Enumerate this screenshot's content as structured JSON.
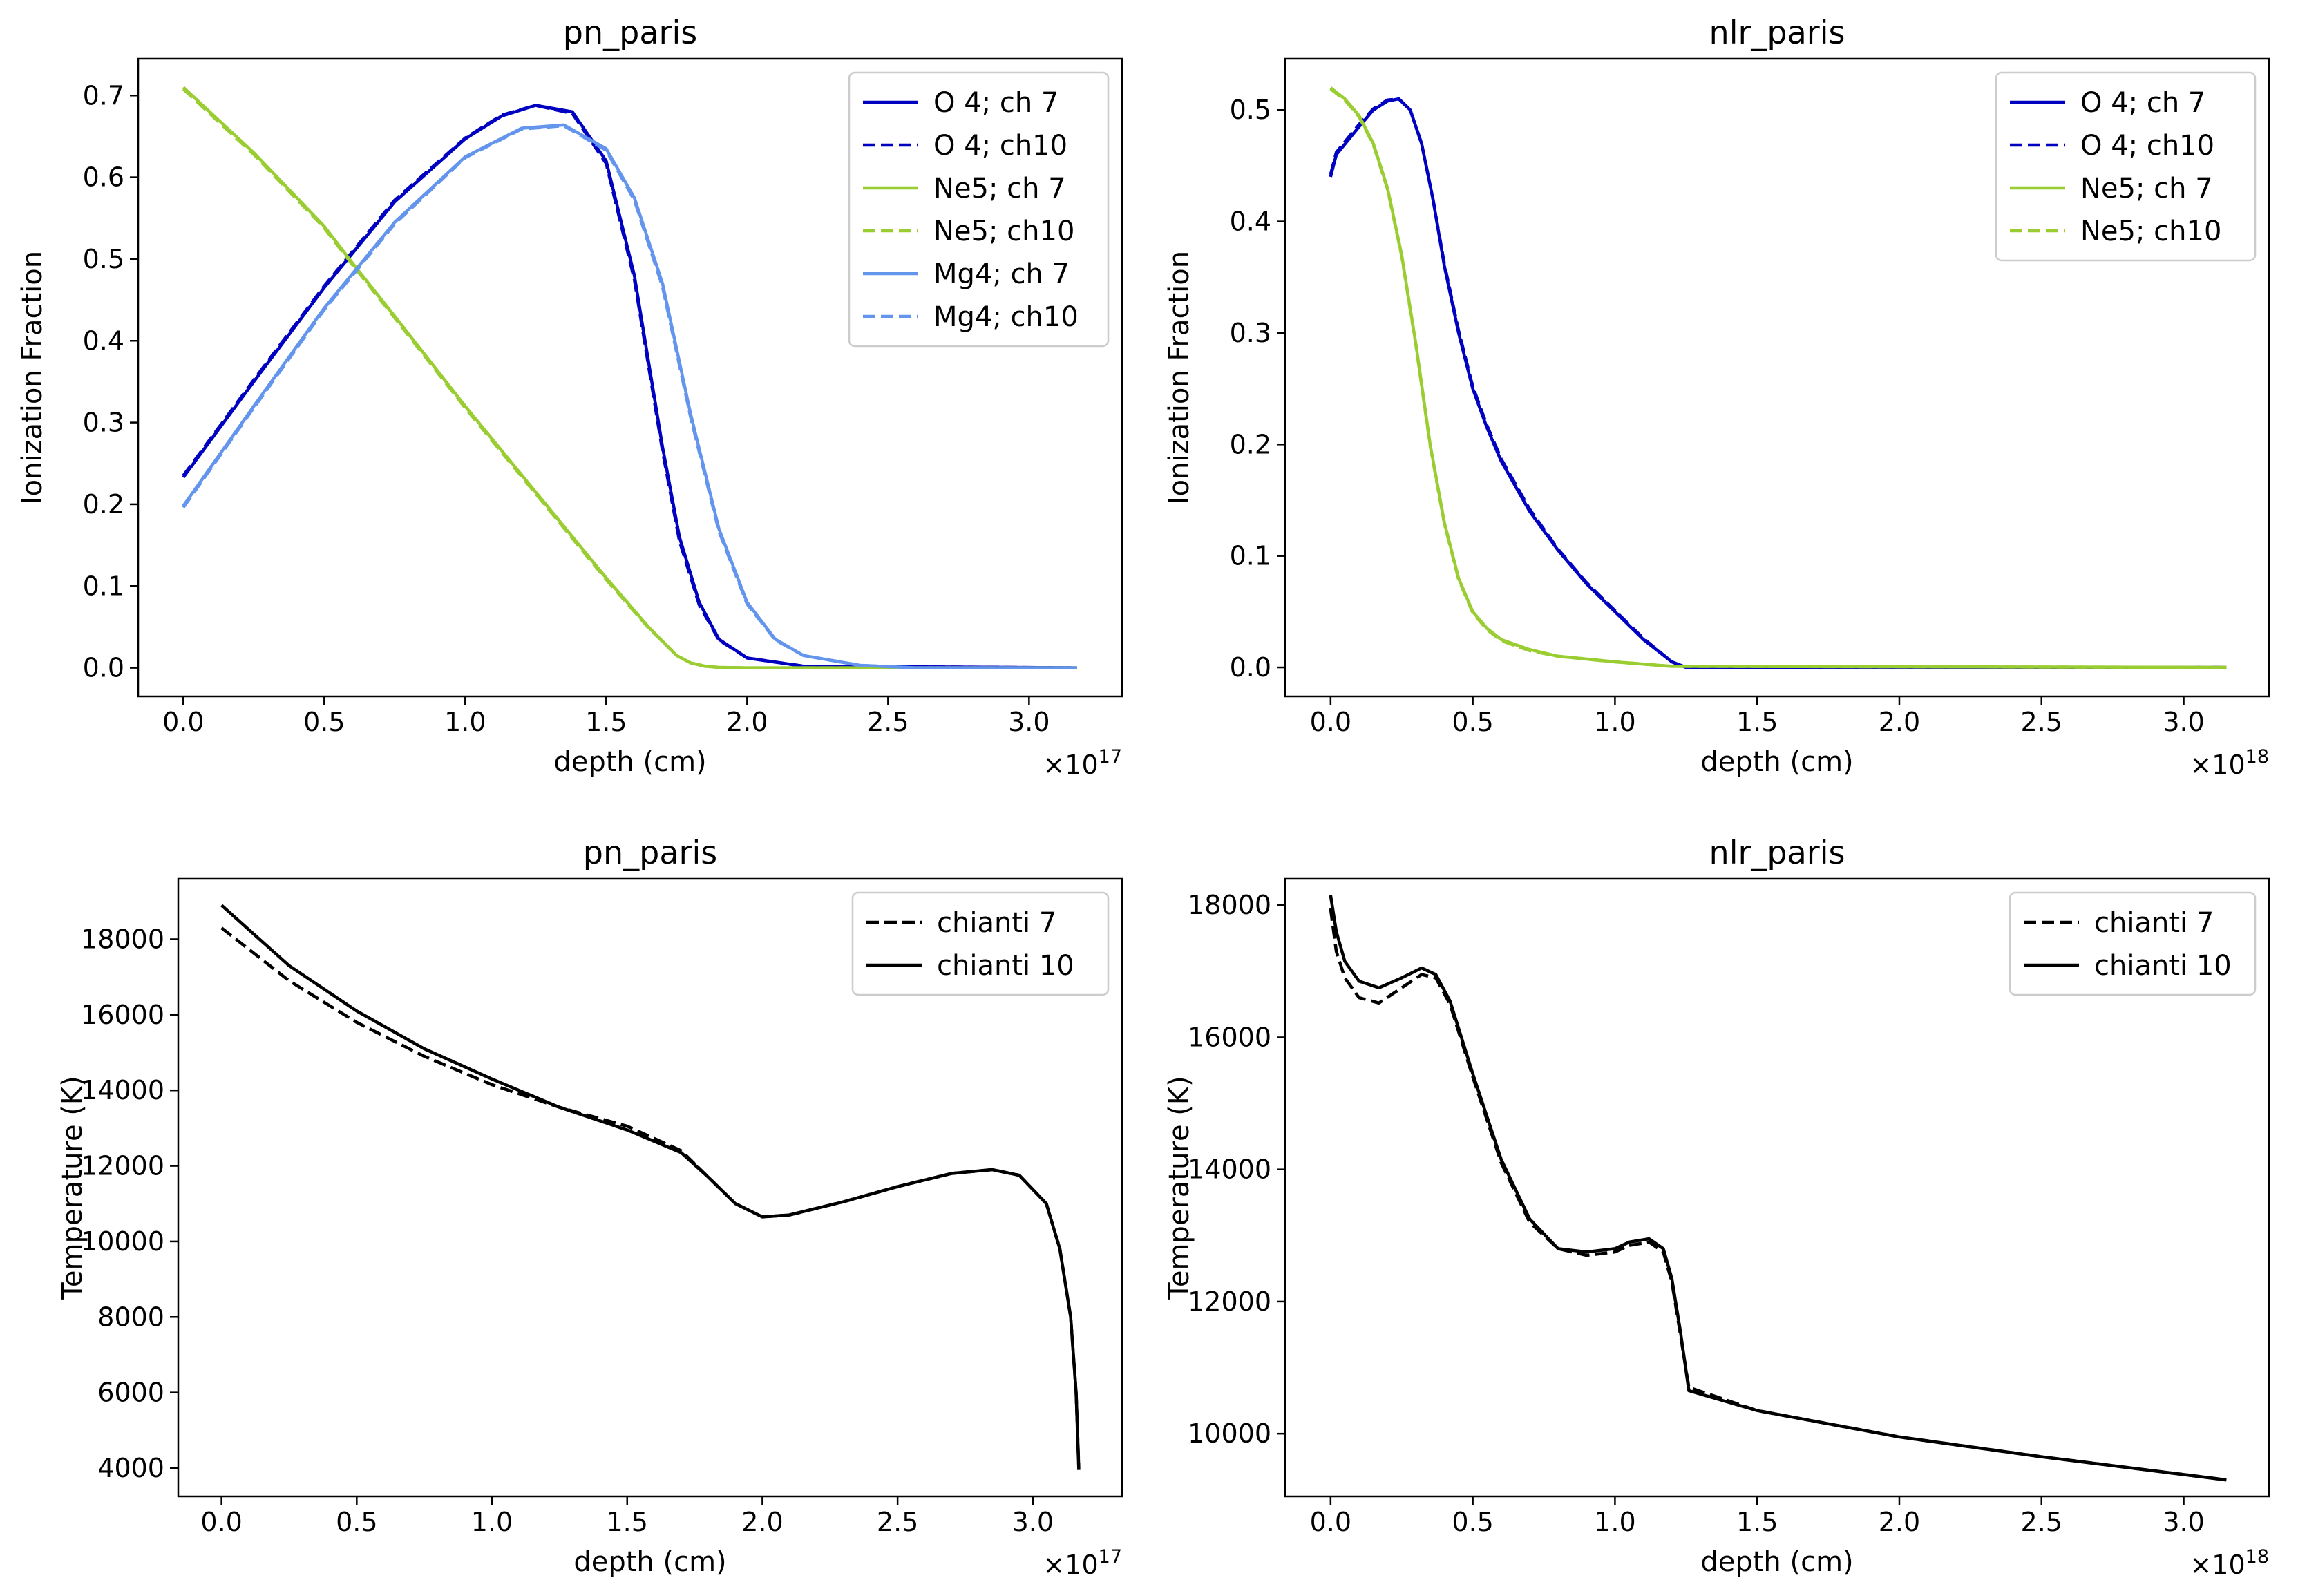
{
  "figure": {
    "background": "#ffffff"
  },
  "chart_data": [
    {
      "type": "line",
      "title": "pn_paris",
      "xlabel": "depth (cm)",
      "ylabel": "Ionization Fraction",
      "x_scale_label": "×10^17",
      "x_multiplier": "×10",
      "x_exponent": "17",
      "xlim": [
        -0.16,
        3.33
      ],
      "ylim": [
        -0.035,
        0.745
      ],
      "xticks": [
        0.0,
        0.5,
        1.0,
        1.5,
        2.0,
        2.5,
        3.0
      ],
      "xtick_labels": [
        "0.0",
        "0.5",
        "1.0",
        "1.5",
        "2.0",
        "2.5",
        "3.0"
      ],
      "yticks": [
        0.0,
        0.1,
        0.2,
        0.3,
        0.4,
        0.5,
        0.6,
        0.7
      ],
      "ytick_labels": [
        "0.0",
        "0.1",
        "0.2",
        "0.3",
        "0.4",
        "0.5",
        "0.6",
        "0.7"
      ],
      "legend_position": "upper right",
      "series": [
        {
          "name": "O 4; ch 7",
          "color": "#0000c0",
          "style": "solid",
          "x": [
            0,
            0.25,
            0.5,
            0.75,
            1.0,
            1.13,
            1.25,
            1.38,
            1.5,
            1.6,
            1.7,
            1.76,
            1.83,
            1.9,
            2.0,
            2.2,
            3.17
          ],
          "y": [
            0.233,
            0.35,
            0.465,
            0.57,
            0.647,
            0.675,
            0.688,
            0.68,
            0.62,
            0.48,
            0.27,
            0.16,
            0.08,
            0.035,
            0.012,
            0.002,
            0.0
          ]
        },
        {
          "name": "O 4; ch10",
          "color": "#0000c0",
          "style": "dashed",
          "x": [
            0,
            0.25,
            0.5,
            0.75,
            1.0,
            1.13,
            1.25,
            1.38,
            1.5,
            1.6,
            1.7,
            1.76,
            1.83,
            1.9,
            2.0,
            2.2,
            3.17
          ],
          "y": [
            0.235,
            0.352,
            0.467,
            0.572,
            0.648,
            0.676,
            0.688,
            0.678,
            0.617,
            0.475,
            0.265,
            0.155,
            0.077,
            0.034,
            0.012,
            0.002,
            0.0
          ]
        },
        {
          "name": "Ne5; ch 7",
          "color": "#9acd32",
          "style": "solid",
          "x": [
            0,
            0.25,
            0.5,
            0.6,
            0.75,
            1.0,
            1.25,
            1.5,
            1.65,
            1.75,
            1.8,
            1.85,
            1.9,
            2.0,
            3.17
          ],
          "y": [
            0.71,
            0.63,
            0.54,
            0.495,
            0.43,
            0.32,
            0.215,
            0.11,
            0.05,
            0.015,
            0.006,
            0.002,
            0.0005,
            0.0,
            0.0
          ]
        },
        {
          "name": "Ne5; ch10",
          "color": "#9acd32",
          "style": "dashed",
          "x": [
            0,
            0.25,
            0.5,
            0.6,
            0.75,
            1.0,
            1.25,
            1.5,
            1.65,
            1.75,
            1.8,
            1.85,
            1.9,
            2.0,
            3.17
          ],
          "y": [
            0.708,
            0.628,
            0.538,
            0.493,
            0.428,
            0.318,
            0.213,
            0.108,
            0.049,
            0.015,
            0.006,
            0.002,
            0.0005,
            0.0,
            0.0
          ]
        },
        {
          "name": "Mg4; ch 7",
          "color": "#6495ed",
          "style": "solid",
          "x": [
            0,
            0.25,
            0.5,
            0.75,
            1.0,
            1.2,
            1.35,
            1.5,
            1.6,
            1.7,
            1.8,
            1.9,
            2.0,
            2.1,
            2.2,
            2.4,
            2.6,
            3.17
          ],
          "y": [
            0.198,
            0.32,
            0.44,
            0.545,
            0.625,
            0.66,
            0.664,
            0.635,
            0.575,
            0.47,
            0.31,
            0.17,
            0.08,
            0.035,
            0.015,
            0.003,
            0.0,
            0.0
          ]
        },
        {
          "name": "Mg4; ch10",
          "color": "#6495ed",
          "style": "dashed",
          "x": [
            0,
            0.25,
            0.5,
            0.75,
            1.0,
            1.2,
            1.35,
            1.5,
            1.6,
            1.7,
            1.8,
            1.9,
            2.0,
            2.1,
            2.2,
            2.4,
            2.6,
            3.17
          ],
          "y": [
            0.196,
            0.318,
            0.438,
            0.543,
            0.624,
            0.659,
            0.663,
            0.633,
            0.572,
            0.466,
            0.306,
            0.167,
            0.078,
            0.034,
            0.015,
            0.003,
            0.0,
            0.0
          ]
        }
      ]
    },
    {
      "type": "line",
      "title": "nlr_paris",
      "xlabel": "depth (cm)",
      "ylabel": "Ionization Fraction",
      "x_scale_label": "×10^18",
      "x_multiplier": "×10",
      "x_exponent": "18",
      "xlim": [
        -0.16,
        3.3
      ],
      "ylim": [
        -0.026,
        0.546
      ],
      "xticks": [
        0.0,
        0.5,
        1.0,
        1.5,
        2.0,
        2.5,
        3.0
      ],
      "xtick_labels": [
        "0.0",
        "0.5",
        "1.0",
        "1.5",
        "2.0",
        "2.5",
        "3.0"
      ],
      "yticks": [
        0.0,
        0.1,
        0.2,
        0.3,
        0.4,
        0.5
      ],
      "ytick_labels": [
        "0.0",
        "0.1",
        "0.2",
        "0.3",
        "0.4",
        "0.5"
      ],
      "legend_position": "upper right",
      "series": [
        {
          "name": "O 4; ch 7",
          "color": "#0000c0",
          "style": "solid",
          "x": [
            0,
            0.02,
            0.1,
            0.15,
            0.2,
            0.24,
            0.28,
            0.32,
            0.36,
            0.4,
            0.45,
            0.5,
            0.55,
            0.6,
            0.7,
            0.8,
            0.9,
            1.0,
            1.1,
            1.2,
            1.25,
            3.15
          ],
          "y": [
            0.44,
            0.46,
            0.485,
            0.5,
            0.508,
            0.51,
            0.5,
            0.47,
            0.42,
            0.36,
            0.3,
            0.25,
            0.215,
            0.185,
            0.14,
            0.105,
            0.075,
            0.05,
            0.025,
            0.005,
            0.0,
            0.0
          ]
        },
        {
          "name": "O 4; ch10",
          "color": "#0000c0",
          "style": "dashed",
          "x": [
            0,
            0.02,
            0.1,
            0.15,
            0.2,
            0.24,
            0.28,
            0.32,
            0.36,
            0.4,
            0.45,
            0.5,
            0.55,
            0.6,
            0.7,
            0.8,
            0.9,
            1.0,
            1.1,
            1.2,
            1.25,
            3.15
          ],
          "y": [
            0.442,
            0.462,
            0.487,
            0.501,
            0.509,
            0.51,
            0.5,
            0.47,
            0.42,
            0.362,
            0.302,
            0.252,
            0.217,
            0.187,
            0.142,
            0.106,
            0.076,
            0.051,
            0.026,
            0.005,
            0.0,
            0.0
          ]
        },
        {
          "name": "Ne5; ch 7",
          "color": "#9acd32",
          "style": "solid",
          "x": [
            0,
            0.05,
            0.1,
            0.15,
            0.2,
            0.25,
            0.3,
            0.35,
            0.4,
            0.45,
            0.5,
            0.55,
            0.6,
            0.7,
            0.8,
            1.0,
            1.2,
            3.15
          ],
          "y": [
            0.52,
            0.51,
            0.495,
            0.47,
            0.43,
            0.37,
            0.29,
            0.2,
            0.13,
            0.08,
            0.05,
            0.035,
            0.025,
            0.016,
            0.01,
            0.005,
            0.001,
            0.0
          ]
        },
        {
          "name": "Ne5; ch10",
          "color": "#9acd32",
          "style": "dashed",
          "x": [
            0,
            0.05,
            0.1,
            0.15,
            0.2,
            0.25,
            0.3,
            0.35,
            0.4,
            0.45,
            0.5,
            0.55,
            0.6,
            0.7,
            0.8,
            1.0,
            1.2,
            3.15
          ],
          "y": [
            0.519,
            0.509,
            0.494,
            0.469,
            0.429,
            0.369,
            0.289,
            0.199,
            0.129,
            0.079,
            0.049,
            0.034,
            0.024,
            0.015,
            0.01,
            0.005,
            0.001,
            0.0
          ]
        }
      ]
    },
    {
      "type": "line",
      "title": "pn_paris",
      "xlabel": "depth (cm)",
      "ylabel": "Temperature (K)",
      "x_scale_label": "×10^17",
      "x_multiplier": "×10",
      "x_exponent": "17",
      "xlim": [
        -0.16,
        3.33
      ],
      "ylim": [
        3250,
        19600
      ],
      "xticks": [
        0.0,
        0.5,
        1.0,
        1.5,
        2.0,
        2.5,
        3.0
      ],
      "xtick_labels": [
        "0.0",
        "0.5",
        "1.0",
        "1.5",
        "2.0",
        "2.5",
        "3.0"
      ],
      "yticks": [
        4000,
        6000,
        8000,
        10000,
        12000,
        14000,
        16000,
        18000
      ],
      "ytick_labels": [
        "4000",
        "6000",
        "8000",
        "10000",
        "12000",
        "14000",
        "16000",
        "18000"
      ],
      "legend_position": "upper right",
      "series": [
        {
          "name": "chianti 7",
          "color": "#000000",
          "style": "dashed",
          "x": [
            0,
            0.25,
            0.5,
            0.75,
            1.0,
            1.25,
            1.5,
            1.7,
            1.8,
            1.9,
            2.0,
            2.1,
            2.3,
            2.5,
            2.7,
            2.85,
            2.95,
            3.05,
            3.1,
            3.14,
            3.16,
            3.17
          ],
          "y": [
            18300,
            16900,
            15800,
            14900,
            14150,
            13550,
            13050,
            12400,
            11700,
            11000,
            10650,
            10700,
            11050,
            11450,
            11800,
            11900,
            11750,
            11000,
            9800,
            8000,
            6000,
            4000
          ]
        },
        {
          "name": "chianti 10",
          "color": "#000000",
          "style": "solid",
          "x": [
            0,
            0.25,
            0.5,
            0.75,
            1.0,
            1.25,
            1.5,
            1.7,
            1.8,
            1.9,
            2.0,
            2.1,
            2.3,
            2.5,
            2.7,
            2.85,
            2.95,
            3.05,
            3.1,
            3.14,
            3.16,
            3.17
          ],
          "y": [
            18900,
            17300,
            16100,
            15100,
            14300,
            13550,
            12950,
            12350,
            11700,
            11000,
            10650,
            10700,
            11050,
            11450,
            11800,
            11900,
            11750,
            11000,
            9800,
            8000,
            6000,
            3950
          ]
        }
      ]
    },
    {
      "type": "line",
      "title": "nlr_paris",
      "xlabel": "depth (cm)",
      "ylabel": "Temperature (K)",
      "x_scale_label": "×10^18",
      "x_multiplier": "×10",
      "x_exponent": "18",
      "xlim": [
        -0.16,
        3.3
      ],
      "ylim": [
        9050,
        18400
      ],
      "xticks": [
        0.0,
        0.5,
        1.0,
        1.5,
        2.0,
        2.5,
        3.0
      ],
      "xtick_labels": [
        "0.0",
        "0.5",
        "1.0",
        "1.5",
        "2.0",
        "2.5",
        "3.0"
      ],
      "yticks": [
        10000,
        12000,
        14000,
        16000,
        18000
      ],
      "ytick_labels": [
        "10000",
        "12000",
        "14000",
        "16000",
        "18000"
      ],
      "legend_position": "upper right",
      "series": [
        {
          "name": "chianti 7",
          "color": "#000000",
          "style": "dashed",
          "x": [
            0,
            0.02,
            0.05,
            0.1,
            0.17,
            0.25,
            0.32,
            0.37,
            0.42,
            0.5,
            0.6,
            0.7,
            0.8,
            0.9,
            1.0,
            1.05,
            1.12,
            1.17,
            1.2,
            1.23,
            1.26,
            1.5,
            2.0,
            2.5,
            3.15
          ],
          "y": [
            17950,
            17300,
            16900,
            16600,
            16520,
            16750,
            16950,
            16900,
            16500,
            15400,
            14100,
            13200,
            12800,
            12700,
            12750,
            12850,
            12900,
            12750,
            12300,
            11500,
            10700,
            10350,
            9950,
            9650,
            9300
          ]
        },
        {
          "name": "chianti 10",
          "color": "#000000",
          "style": "solid",
          "x": [
            0,
            0.02,
            0.05,
            0.1,
            0.17,
            0.25,
            0.32,
            0.37,
            0.42,
            0.5,
            0.6,
            0.7,
            0.8,
            0.9,
            1.0,
            1.05,
            1.12,
            1.17,
            1.2,
            1.23,
            1.26,
            1.5,
            2.0,
            2.5,
            3.15
          ],
          "y": [
            18150,
            17600,
            17150,
            16850,
            16750,
            16900,
            17050,
            16950,
            16550,
            15450,
            14150,
            13250,
            12800,
            12750,
            12800,
            12900,
            12950,
            12800,
            12350,
            11550,
            10650,
            10350,
            9950,
            9650,
            9300
          ]
        }
      ]
    }
  ]
}
